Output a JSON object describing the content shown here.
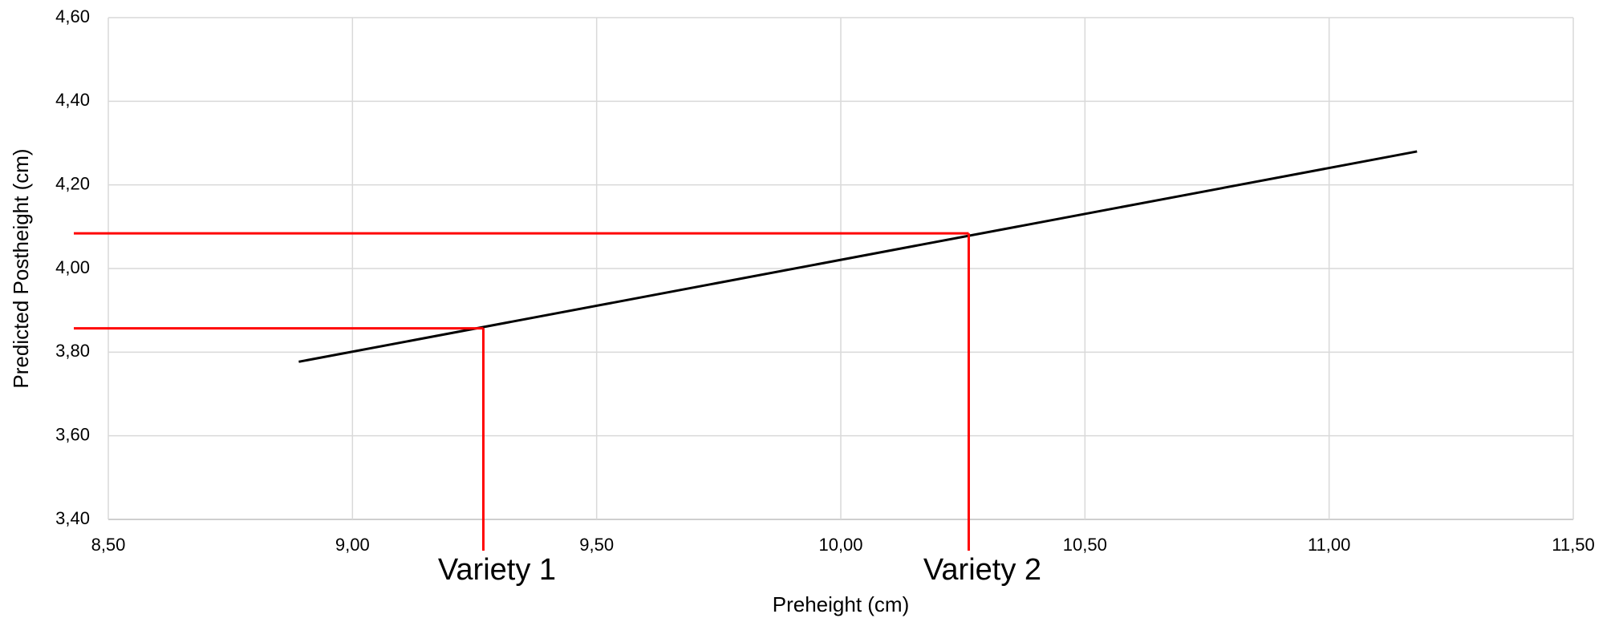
{
  "chart_data": {
    "type": "line",
    "x_label": "Preheight (cm)",
    "y_label": "Predicted Postheight (cm)",
    "x": [
      8.89,
      11.18
    ],
    "values": [
      3.777,
      4.28
    ],
    "color": "#000000",
    "xlim": [
      8.5,
      11.5
    ],
    "xticks": [
      {
        "value": 8.5,
        "label": "8,50"
      },
      {
        "value": 9.0,
        "label": "9,00"
      },
      {
        "value": 9.5,
        "label": "9,50"
      },
      {
        "value": 10.0,
        "label": "10,00"
      },
      {
        "value": 10.5,
        "label": "10,50"
      },
      {
        "value": 11.0,
        "label": "11,00"
      },
      {
        "value": 11.5,
        "label": "11,50"
      }
    ],
    "ylim": [
      3.4,
      4.6
    ],
    "yticks": [
      {
        "value": 3.4,
        "label": "3,40"
      },
      {
        "value": 3.6,
        "label": "3,60"
      },
      {
        "value": 3.8,
        "label": "3,80"
      },
      {
        "value": 4.0,
        "label": "4,00"
      },
      {
        "value": 4.2,
        "label": "4,20"
      },
      {
        "value": 4.4,
        "label": "4,40"
      },
      {
        "value": 4.6,
        "label": "4,60"
      }
    ],
    "grid": true,
    "annotations": [
      {
        "label": "Variety 1",
        "x": 9.268,
        "y": 3.857,
        "color": "#ff0000"
      },
      {
        "label": "Variety 2",
        "x": 10.262,
        "y": 4.084,
        "color": "#ff0000"
      }
    ]
  }
}
